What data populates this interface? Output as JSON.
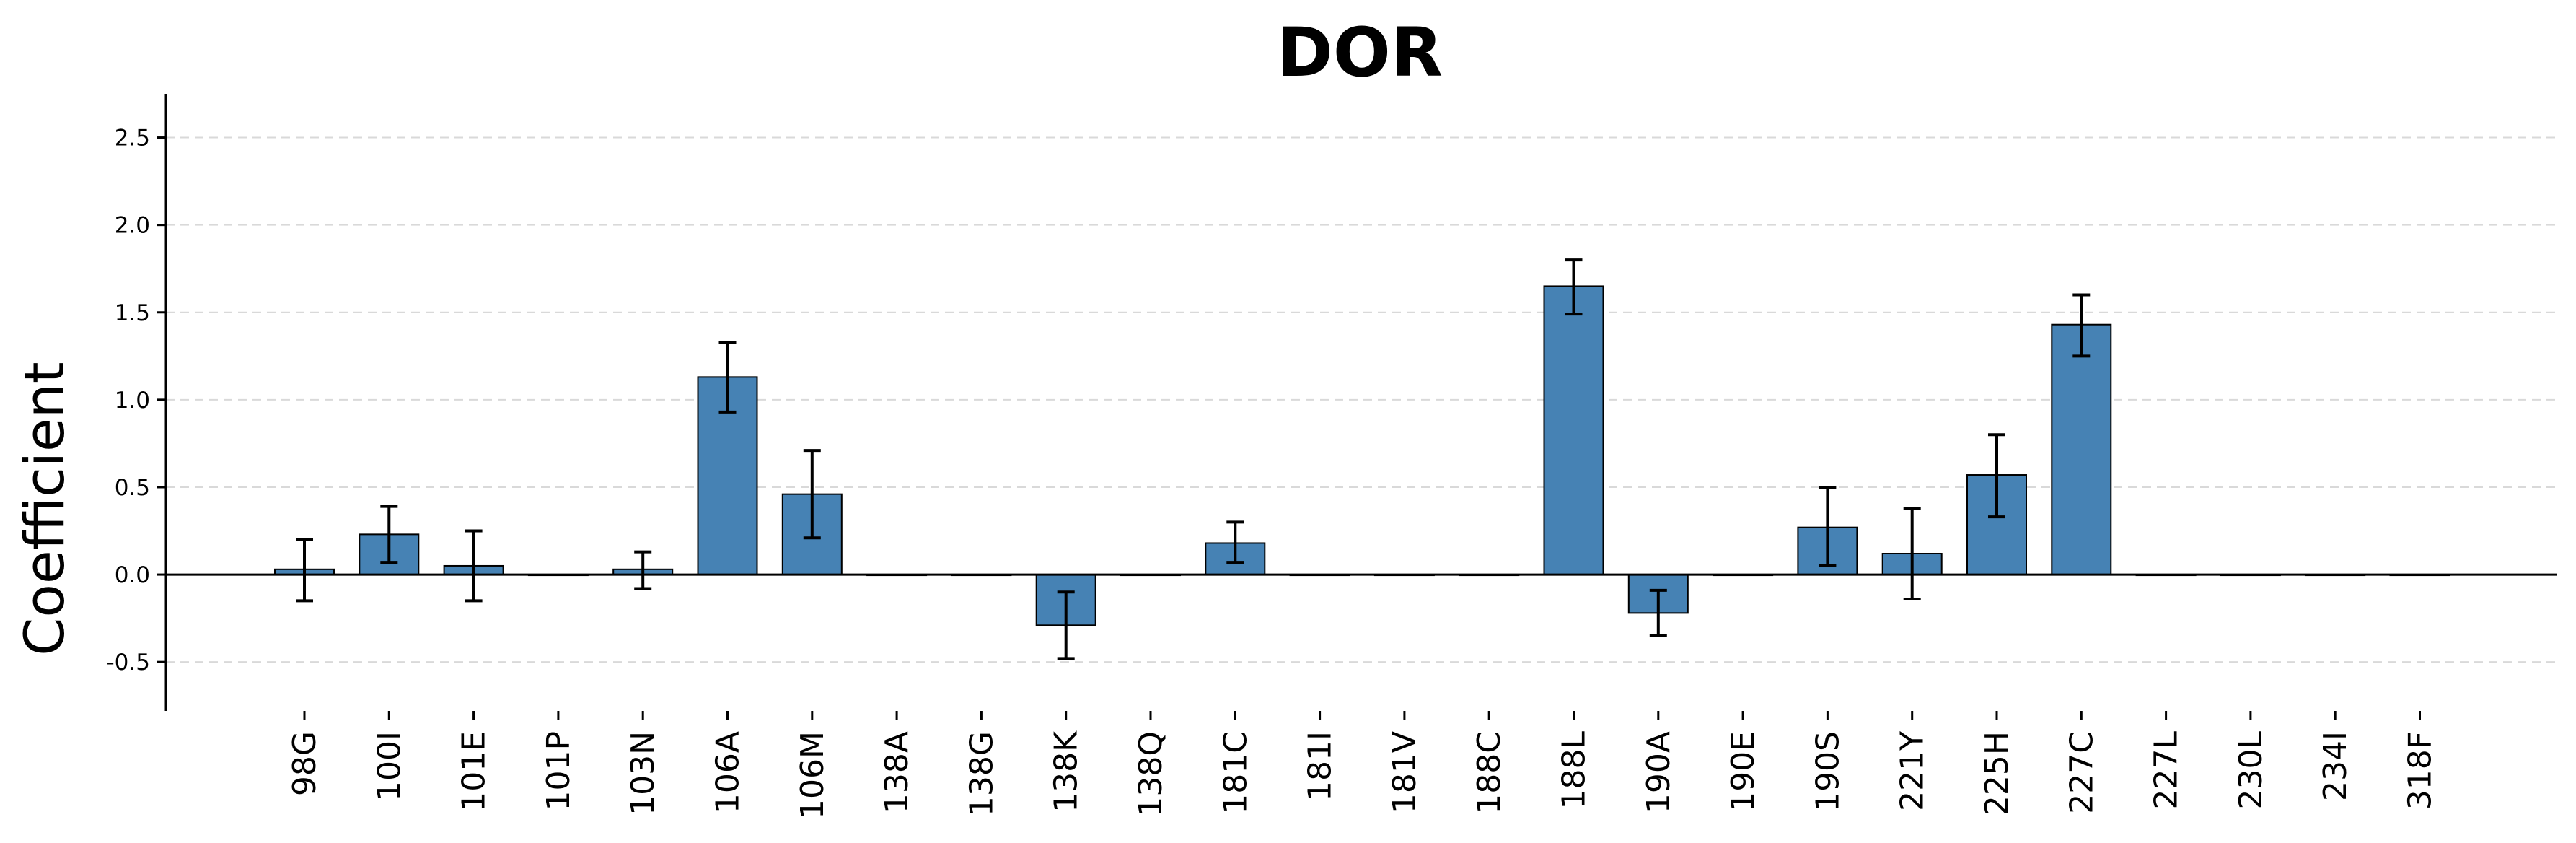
{
  "chart_data": {
    "type": "bar",
    "title": "DOR",
    "xlabel": "",
    "ylabel": "Coefficient",
    "ylim": [
      -0.78,
      2.75
    ],
    "yticks": [
      "-0.5",
      "0.0",
      "0.5",
      "1.0",
      "1.5",
      "2.0",
      "2.5"
    ],
    "grid": "horizontal dashed",
    "bar_color": "#4682b4",
    "categories": [
      "98G",
      "100I",
      "101E",
      "101P",
      "103N",
      "106A",
      "106M",
      "138A",
      "138G",
      "138K",
      "138Q",
      "181C",
      "181I",
      "181V",
      "188C",
      "188L",
      "190A",
      "190E",
      "190S",
      "221Y",
      "225H",
      "227C",
      "227L",
      "230L",
      "234I",
      "318F"
    ],
    "values": [
      0.03,
      0.23,
      0.05,
      0.0,
      0.03,
      1.13,
      0.46,
      0.0,
      0.0,
      -0.29,
      0.0,
      0.18,
      0.0,
      0.0,
      0.0,
      1.65,
      -0.22,
      0.0,
      0.27,
      0.12,
      0.57,
      1.43,
      0.0,
      0.0,
      0.0,
      0.0
    ],
    "error_low": [
      -0.15,
      0.07,
      -0.15,
      null,
      -0.08,
      0.93,
      0.21,
      null,
      null,
      -0.48,
      null,
      0.07,
      null,
      null,
      null,
      1.49,
      -0.35,
      null,
      0.05,
      -0.14,
      0.33,
      1.25,
      null,
      null,
      null,
      null
    ],
    "error_high": [
      0.2,
      0.39,
      0.25,
      null,
      0.13,
      1.33,
      0.71,
      null,
      null,
      -0.1,
      null,
      0.3,
      null,
      null,
      null,
      1.8,
      -0.09,
      null,
      0.5,
      0.38,
      0.8,
      1.6,
      null,
      null,
      null,
      null
    ]
  }
}
